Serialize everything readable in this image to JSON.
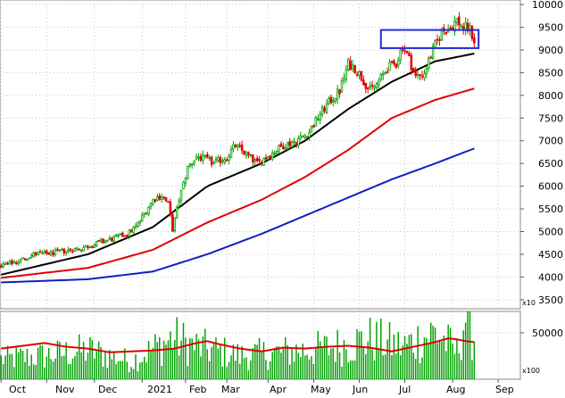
{
  "chart_data": [
    {
      "type": "candlestick",
      "panel": "price",
      "x_labels": [
        "Oct",
        "Nov",
        "Dec",
        "2021",
        "Feb",
        "Mar",
        "Apr",
        "May",
        "Jun",
        "Jul",
        "Aug",
        "Sep"
      ],
      "y_ticks": [
        3500,
        4000,
        4500,
        5000,
        5500,
        6000,
        6500,
        7000,
        7500,
        8000,
        8500,
        9000,
        9500,
        10000
      ],
      "ylim": [
        3300,
        10100
      ],
      "grid": true,
      "axis_multiplier_label": "x10",
      "up_color": "#00a000",
      "down_color": "#e00000",
      "close_trend": [
        [
          0,
          4250
        ],
        [
          8,
          4350
        ],
        [
          15,
          4500
        ],
        [
          22,
          4520
        ],
        [
          30,
          4580
        ],
        [
          38,
          4650
        ],
        [
          45,
          4750
        ],
        [
          52,
          4850
        ],
        [
          58,
          4950
        ],
        [
          62,
          5100
        ],
        [
          66,
          5400
        ],
        [
          70,
          5700
        ],
        [
          74,
          5800
        ],
        [
          77,
          5600
        ],
        [
          79,
          5050
        ],
        [
          82,
          5700
        ],
        [
          86,
          6400
        ],
        [
          90,
          6650
        ],
        [
          94,
          6600
        ],
        [
          98,
          6500
        ],
        [
          104,
          6650
        ],
        [
          108,
          6900
        ],
        [
          113,
          6700
        ],
        [
          118,
          6500
        ],
        [
          124,
          6700
        ],
        [
          130,
          6900
        ],
        [
          136,
          7000
        ],
        [
          142,
          7200
        ],
        [
          147,
          7600
        ],
        [
          152,
          7900
        ],
        [
          156,
          8100
        ],
        [
          160,
          8700
        ],
        [
          163,
          8600
        ],
        [
          166,
          8400
        ],
        [
          170,
          8100
        ],
        [
          174,
          8300
        ],
        [
          178,
          8600
        ],
        [
          182,
          8700
        ],
        [
          185,
          9100
        ],
        [
          188,
          8800
        ],
        [
          191,
          8400
        ],
        [
          195,
          8500
        ],
        [
          199,
          9000
        ],
        [
          203,
          9400
        ],
        [
          207,
          9500
        ],
        [
          210,
          9650
        ],
        [
          213,
          9500
        ],
        [
          216,
          9450
        ],
        [
          218,
          9200
        ]
      ],
      "overlay_box": {
        "from_index": 175,
        "to_index": 220,
        "y_top": 9440,
        "y_bottom": 9040,
        "color": "#2030d0"
      },
      "moving_averages": [
        {
          "color": "#000000",
          "points": [
            [
              0,
              4050
            ],
            [
              40,
              4500
            ],
            [
              70,
              5100
            ],
            [
              95,
              6000
            ],
            [
              120,
              6500
            ],
            [
              140,
              7000
            ],
            [
              160,
              7700
            ],
            [
              180,
              8300
            ],
            [
              200,
              8750
            ],
            [
              218,
              8920
            ]
          ]
        },
        {
          "color": "#e00000",
          "points": [
            [
              0,
              3980
            ],
            [
              40,
              4200
            ],
            [
              70,
              4600
            ],
            [
              95,
              5200
            ],
            [
              120,
              5700
            ],
            [
              140,
              6200
            ],
            [
              160,
              6800
            ],
            [
              180,
              7500
            ],
            [
              200,
              7900
            ],
            [
              218,
              8150
            ]
          ]
        },
        {
          "color": "#1020c0",
          "points": [
            [
              0,
              3880
            ],
            [
              40,
              3950
            ],
            [
              70,
              4120
            ],
            [
              95,
              4500
            ],
            [
              120,
              4950
            ],
            [
              140,
              5350
            ],
            [
              160,
              5750
            ],
            [
              180,
              6150
            ],
            [
              200,
              6500
            ],
            [
              218,
              6830
            ]
          ]
        }
      ]
    },
    {
      "type": "bar",
      "panel": "volume",
      "y_ticks": [
        50000
      ],
      "ylim": [
        0,
        73000
      ],
      "grid": true,
      "axis_multiplier_label": "x100",
      "bar_color": "#00a000",
      "ma_color": "#e00000",
      "volume_trend": [
        [
          0,
          22000
        ],
        [
          20,
          26000
        ],
        [
          40,
          32000
        ],
        [
          60,
          20000
        ],
        [
          79,
          45000
        ],
        [
          90,
          36000
        ],
        [
          110,
          26000
        ],
        [
          130,
          30000
        ],
        [
          150,
          34000
        ],
        [
          170,
          44000
        ],
        [
          185,
          36000
        ],
        [
          200,
          52000
        ],
        [
          210,
          30000
        ],
        [
          214,
          72000
        ],
        [
          218,
          46000
        ]
      ],
      "volume_ma": [
        [
          0,
          33000
        ],
        [
          10,
          36000
        ],
        [
          20,
          39000
        ],
        [
          30,
          35000
        ],
        [
          40,
          33000
        ],
        [
          50,
          29000
        ],
        [
          60,
          30000
        ],
        [
          70,
          31000
        ],
        [
          80,
          33000
        ],
        [
          90,
          39000
        ],
        [
          95,
          41000
        ],
        [
          100,
          38000
        ],
        [
          110,
          33000
        ],
        [
          120,
          30000
        ],
        [
          130,
          34000
        ],
        [
          140,
          33000
        ],
        [
          150,
          35000
        ],
        [
          160,
          36000
        ],
        [
          170,
          34000
        ],
        [
          180,
          30000
        ],
        [
          190,
          35000
        ],
        [
          200,
          40000
        ],
        [
          206,
          44000
        ],
        [
          210,
          43000
        ],
        [
          214,
          41000
        ],
        [
          218,
          40000
        ]
      ]
    }
  ]
}
